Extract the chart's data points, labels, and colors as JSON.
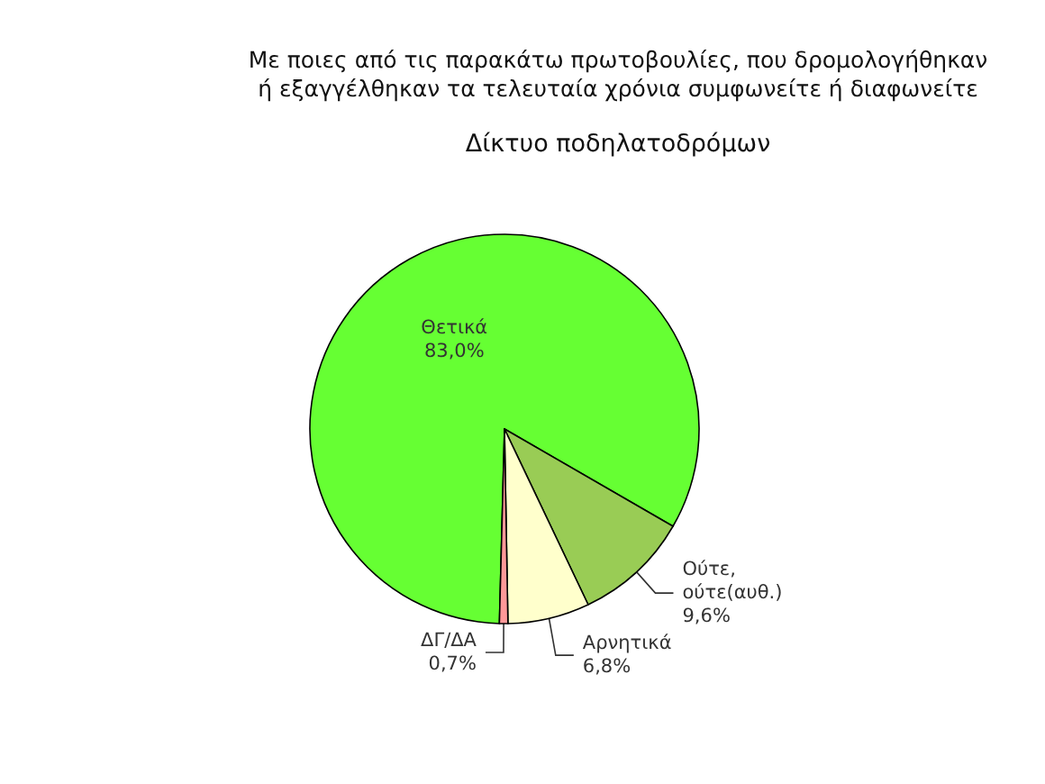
{
  "chart_data": {
    "type": "pie",
    "title": "Με ποιες από τις παρακάτω πρωτοβουλίες, που δρομολογήθηκαν ή εξαγγέλθηκαν τα τελευταία χρόνια συμφωνείτε ή διαφωνείτε",
    "subtitle": "Δίκτυο ποδηλατοδρόμων",
    "categories": [
      "Θετικά",
      "Ούτε, ούτε(αυθ.)",
      "Αρνητικά",
      "ΔΓ/ΔΑ"
    ],
    "values": [
      83.0,
      9.6,
      6.8,
      0.7
    ],
    "colors": [
      "#66ff33",
      "#99cc55",
      "#ffffcc",
      "#ff9999"
    ],
    "value_labels": [
      "83,0%",
      "9,6%",
      "6,8%",
      "0,7%"
    ]
  }
}
